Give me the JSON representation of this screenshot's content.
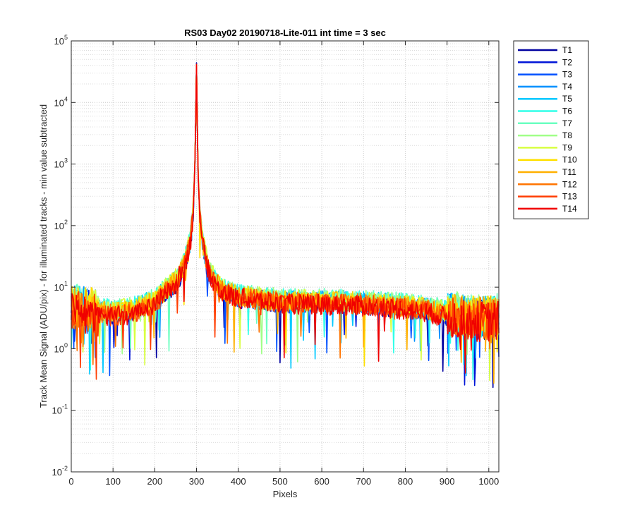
{
  "chart_data": {
    "type": "line",
    "title": "RS03 Day02 20190718-Lite-011 int time = 3 sec",
    "xlabel": "Pixels",
    "ylabel": "Track Mean Signal (ADU/pix) - for illuminated tracks - min value subtracted",
    "xlim": [
      0,
      1024
    ],
    "ylim": [
      0.01,
      100000
    ],
    "yscale": "log",
    "grid": true,
    "minor_grid": true,
    "legend_position": "outside-top-right",
    "x_ticks": [
      0,
      100,
      200,
      300,
      400,
      500,
      600,
      700,
      800,
      900,
      1000
    ],
    "x_tick_labels": [
      "0",
      "100",
      "200",
      "300",
      "400",
      "500",
      "600",
      "700",
      "800",
      "900",
      "1000"
    ],
    "y_tick_exponents": [
      -2,
      -1,
      0,
      1,
      2,
      3,
      4,
      5
    ],
    "y_tick_labels": [
      {
        "base": "10",
        "exp": "-2"
      },
      {
        "base": "10",
        "exp": "-1"
      },
      {
        "base": "10",
        "exp": "0"
      },
      {
        "base": "10",
        "exp": "1"
      },
      {
        "base": "10",
        "exp": "2"
      },
      {
        "base": "10",
        "exp": "3"
      },
      {
        "base": "10",
        "exp": "4"
      },
      {
        "base": "10",
        "exp": "5"
      }
    ],
    "profile_note_peak_x": 300,
    "profile_x": [
      0,
      50,
      100,
      150,
      200,
      250,
      270,
      285,
      292,
      297,
      299,
      300,
      301,
      303,
      308,
      315,
      330,
      360,
      400,
      500,
      600,
      700,
      800,
      850,
      900,
      950,
      1000,
      1024
    ],
    "series": [
      {
        "name": "T1",
        "color": "#0000a0",
        "peak": 44000,
        "values": [
          4.5,
          4.0,
          3.5,
          4.0,
          5.5,
          11,
          20,
          50,
          150,
          1500,
          18000,
          44000,
          15000,
          900,
          130,
          45,
          16,
          8,
          6.5,
          5.5,
          5.5,
          5.2,
          4.6,
          4.2,
          3.5,
          3.0,
          3.0,
          3.0
        ]
      },
      {
        "name": "T2",
        "color": "#0014d8",
        "peak": 43000,
        "values": [
          4.6,
          4.1,
          3.6,
          4.1,
          5.6,
          11.5,
          21,
          52,
          155,
          1520,
          18200,
          43000,
          15200,
          920,
          135,
          47,
          16.5,
          8.3,
          6.7,
          5.6,
          5.6,
          5.3,
          4.7,
          4.3,
          3.6,
          3.1,
          3.1,
          3.1
        ]
      },
      {
        "name": "T3",
        "color": "#0050ff",
        "peak": 42500,
        "values": [
          4.8,
          4.3,
          3.8,
          4.3,
          5.8,
          12,
          22,
          54,
          160,
          1550,
          18400,
          42500,
          15400,
          940,
          140,
          49,
          17,
          8.6,
          6.9,
          5.8,
          5.8,
          5.5,
          4.9,
          4.4,
          3.8,
          3.3,
          3.2,
          3.2
        ]
      },
      {
        "name": "T4",
        "color": "#0090ff",
        "peak": 42000,
        "values": [
          5.0,
          4.5,
          4.0,
          4.5,
          6.0,
          12.5,
          23,
          56,
          165,
          1580,
          18600,
          42000,
          15600,
          960,
          145,
          51,
          17.5,
          8.9,
          7.1,
          6.0,
          6.0,
          5.7,
          5.0,
          4.6,
          3.9,
          3.4,
          3.4,
          3.3
        ]
      },
      {
        "name": "T5",
        "color": "#00c8ff",
        "peak": 41800,
        "values": [
          5.2,
          4.7,
          4.2,
          4.7,
          6.2,
          13,
          24,
          58,
          170,
          1600,
          18800,
          41800,
          15800,
          980,
          150,
          53,
          18,
          9.2,
          7.3,
          6.2,
          6.2,
          5.9,
          5.2,
          4.8,
          4.1,
          3.5,
          3.5,
          3.4
        ]
      },
      {
        "name": "T6",
        "color": "#30ffe8",
        "peak": 41500,
        "values": [
          5.4,
          4.9,
          4.4,
          4.9,
          6.4,
          13.5,
          25,
          60,
          175,
          1620,
          19000,
          41500,
          16000,
          1000,
          155,
          55,
          18.5,
          9.5,
          7.5,
          6.4,
          6.4,
          6.1,
          5.4,
          5.0,
          4.2,
          3.6,
          3.6,
          3.5
        ]
      },
      {
        "name": "T7",
        "color": "#6affc0",
        "peak": 41200,
        "values": [
          5.5,
          5.0,
          4.5,
          5.0,
          6.5,
          14,
          26,
          62,
          180,
          1640,
          19200,
          41200,
          16200,
          1020,
          160,
          57,
          19,
          9.7,
          7.7,
          6.5,
          6.5,
          6.2,
          5.5,
          5.1,
          4.3,
          3.7,
          3.7,
          3.6
        ]
      },
      {
        "name": "T8",
        "color": "#a0ff88",
        "peak": 41000,
        "values": [
          5.4,
          4.9,
          4.4,
          4.9,
          6.4,
          14,
          26,
          63,
          182,
          1650,
          19300,
          41000,
          16300,
          1030,
          162,
          58,
          19.2,
          9.8,
          7.8,
          6.5,
          6.4,
          6.1,
          5.4,
          5.0,
          4.2,
          3.6,
          3.6,
          3.5
        ]
      },
      {
        "name": "T9",
        "color": "#d8ff40",
        "peak": 40800,
        "values": [
          5.2,
          4.7,
          4.2,
          4.7,
          6.2,
          13.5,
          25,
          61,
          178,
          1630,
          19100,
          40800,
          16100,
          1010,
          158,
          56,
          18.8,
          9.6,
          7.6,
          6.3,
          6.2,
          5.9,
          5.2,
          4.8,
          4.1,
          3.5,
          3.5,
          3.4
        ]
      },
      {
        "name": "T10",
        "color": "#ffe000",
        "peak": 40600,
        "values": [
          5.0,
          4.5,
          4.0,
          4.5,
          6.0,
          13,
          24,
          59,
          172,
          1610,
          18900,
          40600,
          15900,
          990,
          152,
          54,
          18.2,
          9.3,
          7.4,
          6.1,
          6.0,
          5.7,
          5.0,
          4.6,
          3.9,
          3.4,
          3.4,
          3.3
        ]
      },
      {
        "name": "T11",
        "color": "#ffb000",
        "peak": 40400,
        "values": [
          4.8,
          4.3,
          3.8,
          4.3,
          5.8,
          12.5,
          23,
          57,
          168,
          1590,
          18700,
          40400,
          15700,
          970,
          148,
          52,
          17.8,
          9.0,
          7.2,
          5.9,
          5.8,
          5.5,
          4.9,
          4.4,
          3.8,
          3.3,
          3.3,
          3.2
        ]
      },
      {
        "name": "T12",
        "color": "#ff7400",
        "peak": 40200,
        "values": [
          4.6,
          4.1,
          3.6,
          4.1,
          5.6,
          12,
          22,
          55,
          163,
          1570,
          18500,
          40200,
          15500,
          950,
          143,
          50,
          17.2,
          8.7,
          7.0,
          5.7,
          5.6,
          5.3,
          4.7,
          4.3,
          3.6,
          3.1,
          3.1,
          3.1
        ]
      },
      {
        "name": "T13",
        "color": "#ff3c00",
        "peak": 40000,
        "values": [
          4.4,
          3.9,
          3.4,
          3.9,
          5.4,
          11.5,
          21,
          53,
          158,
          1560,
          18300,
          40000,
          15300,
          930,
          138,
          48,
          16.8,
          8.5,
          6.8,
          5.5,
          5.4,
          5.1,
          4.5,
          4.1,
          3.4,
          3.0,
          3.0,
          3.0
        ]
      },
      {
        "name": "T14",
        "color": "#f00000",
        "peak": 42000,
        "values": [
          4.2,
          3.7,
          3.2,
          3.7,
          5.2,
          11,
          20,
          51,
          152,
          1540,
          18100,
          42000,
          15100,
          910,
          133,
          46,
          16.2,
          8.2,
          6.6,
          5.3,
          5.2,
          4.9,
          4.3,
          3.9,
          3.2,
          2.8,
          2.8,
          2.8
        ]
      }
    ]
  }
}
